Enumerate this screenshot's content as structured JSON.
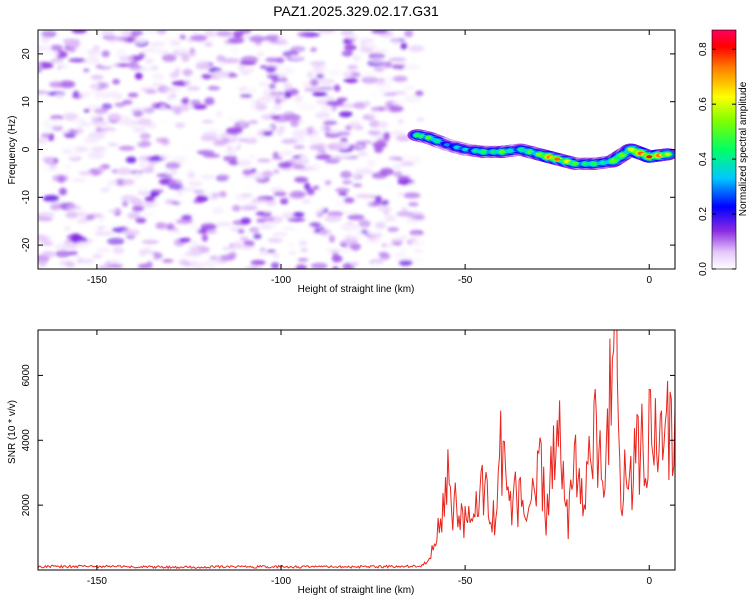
{
  "figure_title": "PAZ1.2025.329.02.17.G31",
  "chart_data": [
    {
      "type": "heatmap",
      "title": "PAZ1.2025.329.02.17.G31",
      "xlabel": "Height of straight line (km)",
      "ylabel": "Frequency (Hz)",
      "xlim": [
        -166,
        7
      ],
      "ylim": [
        -25,
        25
      ],
      "xticks": [
        -150,
        -100,
        -50,
        0
      ],
      "yticks": [
        -20,
        -10,
        0,
        10,
        20
      ],
      "noise_region": {
        "x_range": [
          -166,
          -62
        ],
        "y_range": [
          -25,
          25
        ],
        "amplitude_range": [
          0.0,
          0.12
        ]
      },
      "signal_ridge": {
        "points": [
          {
            "x": -63,
            "y": 3.0,
            "amplitude": 0.45
          },
          {
            "x": -60,
            "y": 2.5,
            "amplitude": 0.5
          },
          {
            "x": -55,
            "y": 1.0,
            "amplitude": 0.3
          },
          {
            "x": -50,
            "y": 0.0,
            "amplitude": 0.35
          },
          {
            "x": -45,
            "y": -0.5,
            "amplitude": 0.45
          },
          {
            "x": -40,
            "y": -0.5,
            "amplitude": 0.5
          },
          {
            "x": -35,
            "y": 0.0,
            "amplitude": 0.4
          },
          {
            "x": -30,
            "y": -1.0,
            "amplitude": 0.55
          },
          {
            "x": -25,
            "y": -2.0,
            "amplitude": 0.75
          },
          {
            "x": -20,
            "y": -3.0,
            "amplitude": 0.5
          },
          {
            "x": -15,
            "y": -3.0,
            "amplitude": 0.45
          },
          {
            "x": -10,
            "y": -2.5,
            "amplitude": 0.5
          },
          {
            "x": -5,
            "y": 0.0,
            "amplitude": 0.6
          },
          {
            "x": 0,
            "y": -1.5,
            "amplitude": 0.8
          },
          {
            "x": 5,
            "y": -1.0,
            "amplitude": 0.6
          }
        ]
      },
      "colorbar": {
        "label": "Normalized spectral amplitude",
        "range": [
          0.0,
          0.87
        ],
        "ticks": [
          0.0,
          0.2,
          0.4,
          0.6,
          0.8
        ],
        "tick_labels": [
          "0.0",
          "0.2",
          "0.4",
          "0.6",
          "0.8"
        ],
        "colormap": "rainbow"
      }
    },
    {
      "type": "line",
      "title": "",
      "xlabel": "Height of straight line (km)",
      "ylabel": "SNR (10 * v/v)",
      "xlim": [
        -166,
        7
      ],
      "ylim": [
        0,
        7400
      ],
      "xticks": [
        -150,
        -100,
        -50,
        0
      ],
      "yticks": [
        2000,
        4000,
        6000
      ],
      "series": [
        {
          "name": "SNR",
          "color": "#e8261e",
          "x": [
            -166,
            -150,
            -130,
            -110,
            -90,
            -70,
            -62,
            -60,
            -58,
            -56,
            -55,
            -53,
            -51,
            -48,
            -45,
            -42,
            -40,
            -38,
            -35,
            -33,
            -30,
            -28,
            -25,
            -22,
            -20,
            -18,
            -15,
            -12,
            -10,
            -9,
            -8,
            -6,
            -3,
            -1,
            1,
            4,
            7
          ],
          "y": [
            100,
            110,
            90,
            100,
            95,
            105,
            120,
            300,
            900,
            1800,
            2700,
            2000,
            1500,
            1300,
            2900,
            1400,
            4000,
            1600,
            2600,
            1200,
            3500,
            1700,
            4500,
            1300,
            3800,
            2000,
            4700,
            2600,
            6500,
            7400,
            3200,
            2600,
            4200,
            3100,
            4600,
            3600,
            5000
          ]
        }
      ]
    }
  ]
}
